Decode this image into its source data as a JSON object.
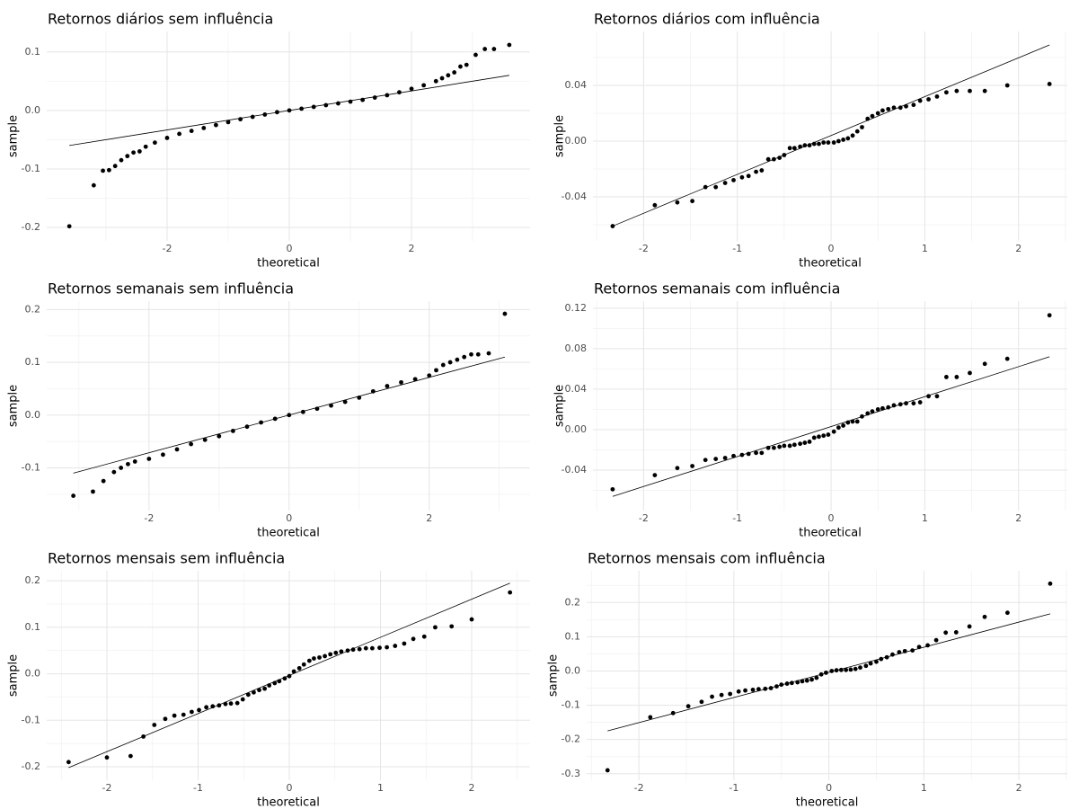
{
  "chart_data": [
    {
      "type": "scatter",
      "title": "Retornos diários sem influência",
      "xlabel": "theoretical",
      "ylabel": "sample",
      "color": "#000000",
      "grid": true,
      "xlim": [
        -3.97,
        3.94
      ],
      "ylim": [
        -0.223,
        0.135
      ],
      "xticks": [
        -2,
        0,
        2
      ],
      "minor_xticks": [
        -3,
        -1,
        1,
        3
      ],
      "yticks": [
        -0.2,
        -0.1,
        {
          "value": 0,
          "label": "0.0"
        },
        0.1
      ],
      "minor_yticks": [
        -0.15,
        -0.05,
        0.05
      ],
      "line": {
        "x": [
          -3.6,
          3.6
        ],
        "y": [
          -0.06,
          0.06
        ]
      },
      "x": [
        -3.6,
        -3.2,
        -3.05,
        -2.95,
        -2.85,
        -2.75,
        -2.65,
        -2.55,
        -2.45,
        -2.35,
        -2.2,
        -2.0,
        -1.8,
        -1.6,
        -1.4,
        -1.2,
        -1.0,
        -0.8,
        -0.6,
        -0.4,
        -0.2,
        0,
        0.2,
        0.4,
        0.6,
        0.8,
        1.0,
        1.2,
        1.4,
        1.6,
        1.8,
        2.0,
        2.2,
        2.4,
        2.5,
        2.6,
        2.7,
        2.8,
        2.9,
        3.05,
        3.2,
        3.35,
        3.6
      ],
      "y": [
        -0.198,
        -0.128,
        -0.103,
        -0.102,
        -0.095,
        -0.085,
        -0.078,
        -0.072,
        -0.07,
        -0.062,
        -0.055,
        -0.047,
        -0.04,
        -0.035,
        -0.03,
        -0.025,
        -0.02,
        -0.015,
        -0.011,
        -0.007,
        -0.003,
        0,
        0.003,
        0.006,
        0.009,
        0.012,
        0.015,
        0.018,
        0.022,
        0.026,
        0.031,
        0.037,
        0.043,
        0.05,
        0.055,
        0.06,
        0.065,
        0.075,
        0.078,
        0.095,
        0.105,
        0.105,
        0.112
      ]
    },
    {
      "type": "scatter",
      "title": "Retornos diários com influência",
      "xlabel": "theoretical",
      "ylabel": "sample",
      "color": "#000000",
      "grid": true,
      "xlim": [
        -2.54,
        2.52
      ],
      "ylim": [
        -0.0716,
        0.0787
      ],
      "xticks": [
        -2,
        -1,
        0,
        1,
        2
      ],
      "minor_xticks": [
        -2.5,
        -1.5,
        -0.5,
        0.5,
        1.5,
        2.5
      ],
      "yticks": [
        -0.04,
        {
          "value": 0,
          "label": "0.00"
        },
        0.04
      ],
      "minor_yticks": [
        -0.06,
        -0.02,
        0.02,
        0.06
      ],
      "line": {
        "x": [
          -2.33,
          2.33
        ],
        "y": [
          -0.061,
          0.069
        ]
      },
      "x": [
        -2.33,
        -1.88,
        -1.64,
        -1.48,
        -1.34,
        -1.23,
        -1.13,
        -1.04,
        -0.95,
        -0.88,
        -0.8,
        -0.74,
        -0.67,
        -0.61,
        -0.55,
        -0.5,
        -0.44,
        -0.39,
        -0.33,
        -0.28,
        -0.23,
        -0.18,
        -0.13,
        -0.08,
        -0.03,
        0.03,
        0.08,
        0.13,
        0.18,
        0.23,
        0.28,
        0.33,
        0.39,
        0.44,
        0.5,
        0.55,
        0.61,
        0.67,
        0.74,
        0.8,
        0.88,
        0.95,
        1.04,
        1.13,
        1.23,
        1.34,
        1.48,
        1.64,
        1.88,
        2.33
      ],
      "y": [
        -0.061,
        -0.046,
        -0.044,
        -0.043,
        -0.033,
        -0.033,
        -0.03,
        -0.028,
        -0.026,
        -0.025,
        -0.022,
        -0.021,
        -0.013,
        -0.013,
        -0.012,
        -0.01,
        -0.005,
        -0.005,
        -0.004,
        -0.003,
        -0.003,
        -0.002,
        -0.002,
        -0.001,
        -0.001,
        -0.001,
        0,
        0.001,
        0.002,
        0.004,
        0.007,
        0.01,
        0.016,
        0.018,
        0.02,
        0.022,
        0.023,
        0.024,
        0.024,
        0.025,
        0.026,
        0.029,
        0.03,
        0.032,
        0.035,
        0.036,
        0.036,
        0.036,
        0.04,
        0.041
      ]
    },
    {
      "type": "scatter",
      "title": "Retornos semanais sem influência",
      "xlabel": "theoretical",
      "ylabel": "sample",
      "color": "#000000",
      "grid": true,
      "xlim": [
        -3.46,
        3.44
      ],
      "ylim": [
        -0.181,
        0.216
      ],
      "xticks": [
        -2,
        0,
        2
      ],
      "minor_xticks": [
        -3,
        -1,
        1,
        3
      ],
      "yticks": [
        -0.1,
        {
          "value": 0,
          "label": "0.0"
        },
        0.1,
        0.2
      ],
      "minor_yticks": [
        -0.15,
        -0.05,
        0.05,
        0.15
      ],
      "line": {
        "x": [
          -3.08,
          3.08
        ],
        "y": [
          -0.11,
          0.11
        ]
      },
      "x": [
        -3.08,
        -2.8,
        -2.65,
        -2.5,
        -2.4,
        -2.3,
        -2.2,
        -2.0,
        -1.8,
        -1.6,
        -1.4,
        -1.2,
        -1.0,
        -0.8,
        -0.6,
        -0.4,
        -0.2,
        0,
        0.2,
        0.4,
        0.6,
        0.8,
        1.0,
        1.2,
        1.4,
        1.6,
        1.8,
        2.0,
        2.1,
        2.2,
        2.3,
        2.4,
        2.5,
        2.6,
        2.7,
        2.85,
        3.08
      ],
      "y": [
        -0.153,
        -0.145,
        -0.125,
        -0.108,
        -0.1,
        -0.093,
        -0.088,
        -0.083,
        -0.075,
        -0.065,
        -0.055,
        -0.047,
        -0.04,
        -0.03,
        -0.022,
        -0.014,
        -0.007,
        0,
        0.006,
        0.012,
        0.018,
        0.025,
        0.033,
        0.045,
        0.055,
        0.062,
        0.068,
        0.075,
        0.085,
        0.095,
        0.1,
        0.105,
        0.11,
        0.115,
        0.115,
        0.117,
        0.192
      ]
    },
    {
      "type": "scatter",
      "title": "Retornos semanais com influência",
      "xlabel": "theoretical",
      "ylabel": "sample",
      "color": "#000000",
      "grid": true,
      "xlim": [
        -2.54,
        2.52
      ],
      "ylim": [
        -0.08,
        0.127
      ],
      "xticks": [
        -2,
        -1,
        0,
        1,
        2
      ],
      "minor_xticks": [
        -2.5,
        -1.5,
        -0.5,
        0.5,
        1.5,
        2.5
      ],
      "yticks": [
        -0.04,
        {
          "value": 0,
          "label": "0.00"
        },
        0.04,
        0.08,
        0.12
      ],
      "minor_yticks": [
        -0.06,
        -0.02,
        0.02,
        0.06,
        0.1
      ],
      "line": {
        "x": [
          -2.33,
          2.33
        ],
        "y": [
          -0.066,
          0.072
        ]
      },
      "x": [
        -2.33,
        -1.88,
        -1.64,
        -1.48,
        -1.34,
        -1.23,
        -1.13,
        -1.04,
        -0.95,
        -0.88,
        -0.8,
        -0.74,
        -0.67,
        -0.61,
        -0.55,
        -0.5,
        -0.44,
        -0.39,
        -0.33,
        -0.28,
        -0.23,
        -0.18,
        -0.13,
        -0.08,
        -0.03,
        0.03,
        0.08,
        0.13,
        0.18,
        0.23,
        0.28,
        0.33,
        0.39,
        0.44,
        0.5,
        0.55,
        0.61,
        0.67,
        0.74,
        0.8,
        0.88,
        0.95,
        1.04,
        1.13,
        1.23,
        1.34,
        1.48,
        1.64,
        1.88,
        2.33
      ],
      "y": [
        -0.059,
        -0.045,
        -0.038,
        -0.036,
        -0.03,
        -0.029,
        -0.028,
        -0.026,
        -0.025,
        -0.024,
        -0.023,
        -0.023,
        -0.018,
        -0.018,
        -0.017,
        -0.016,
        -0.016,
        -0.015,
        -0.014,
        -0.013,
        -0.012,
        -0.008,
        -0.007,
        -0.006,
        -0.005,
        -0.002,
        0.002,
        0.004,
        0.007,
        0.008,
        0.008,
        0.013,
        0.016,
        0.018,
        0.02,
        0.021,
        0.022,
        0.024,
        0.025,
        0.026,
        0.026,
        0.027,
        0.033,
        0.033,
        0.052,
        0.052,
        0.056,
        0.065,
        0.07,
        0.113
      ]
    },
    {
      "type": "scatter",
      "title": "Retornos mensais sem influência",
      "xlabel": "theoretical",
      "ylabel": "sample",
      "color": "#000000",
      "grid": true,
      "xlim": [
        -2.66,
        2.64
      ],
      "ylim": [
        -0.229,
        0.2216
      ],
      "xticks": [
        -2,
        -1,
        0,
        1,
        2
      ],
      "minor_xticks": [
        -2.5,
        -1.5,
        -0.5,
        0.5,
        1.5,
        2.5
      ],
      "yticks": [
        -0.2,
        -0.1,
        {
          "value": 0,
          "label": "0.0"
        },
        0.1,
        0.2
      ],
      "minor_yticks": [
        -0.15,
        -0.05,
        0.05,
        0.15
      ],
      "line": {
        "x": [
          -2.42,
          2.42
        ],
        "y": [
          -0.202,
          0.195
        ]
      },
      "x": [
        -2.42,
        -2.0,
        -1.74,
        -1.6,
        -1.48,
        -1.36,
        -1.26,
        -1.16,
        -1.07,
        -0.99,
        -0.91,
        -0.84,
        -0.77,
        -0.7,
        -0.64,
        -0.57,
        -0.51,
        -0.45,
        -0.39,
        -0.33,
        -0.27,
        -0.22,
        -0.16,
        -0.11,
        -0.05,
        0,
        0.05,
        0.11,
        0.16,
        0.22,
        0.27,
        0.33,
        0.39,
        0.45,
        0.51,
        0.57,
        0.64,
        0.7,
        0.77,
        0.84,
        0.91,
        0.99,
        1.07,
        1.16,
        1.26,
        1.36,
        1.48,
        1.6,
        1.78,
        2.0,
        2.42
      ],
      "y": [
        -0.19,
        -0.18,
        -0.177,
        -0.135,
        -0.11,
        -0.097,
        -0.09,
        -0.088,
        -0.082,
        -0.078,
        -0.072,
        -0.07,
        -0.068,
        -0.065,
        -0.064,
        -0.063,
        -0.055,
        -0.045,
        -0.04,
        -0.035,
        -0.032,
        -0.025,
        -0.02,
        -0.016,
        -0.01,
        -0.005,
        0.005,
        0.012,
        0.02,
        0.028,
        0.033,
        0.035,
        0.038,
        0.042,
        0.045,
        0.048,
        0.05,
        0.052,
        0.053,
        0.055,
        0.055,
        0.056,
        0.057,
        0.06,
        0.065,
        0.075,
        0.08,
        0.1,
        0.102,
        0.117,
        0.175
      ]
    },
    {
      "type": "scatter",
      "title": "Retornos mensais com influência",
      "xlabel": "theoretical",
      "ylabel": "sample",
      "color": "#000000",
      "grid": true,
      "xlim": [
        -2.55,
        2.51
      ],
      "ylim": [
        -0.319,
        0.2926
      ],
      "xticks": [
        -2,
        -1,
        0,
        1,
        2
      ],
      "minor_xticks": [
        -2.5,
        -1.5,
        -0.5,
        0.5,
        1.5,
        2.5
      ],
      "yticks": [
        -0.3,
        -0.2,
        -0.1,
        {
          "value": 0,
          "label": "0.0"
        },
        0.1,
        0.2
      ],
      "minor_yticks": [
        -0.25,
        -0.15,
        -0.05,
        0.05,
        0.15,
        0.25
      ],
      "line": {
        "x": [
          -2.33,
          2.33
        ],
        "y": [
          -0.175,
          0.167
        ]
      },
      "x": [
        -2.33,
        -1.88,
        -1.64,
        -1.48,
        -1.34,
        -1.23,
        -1.13,
        -1.04,
        -0.95,
        -0.88,
        -0.8,
        -0.74,
        -0.67,
        -0.61,
        -0.55,
        -0.5,
        -0.44,
        -0.39,
        -0.33,
        -0.28,
        -0.23,
        -0.18,
        -0.13,
        -0.08,
        -0.03,
        0.03,
        0.08,
        0.13,
        0.18,
        0.23,
        0.28,
        0.33,
        0.39,
        0.44,
        0.5,
        0.55,
        0.61,
        0.67,
        0.74,
        0.8,
        0.88,
        0.95,
        1.04,
        1.13,
        1.23,
        1.34,
        1.48,
        1.64,
        1.88,
        2.33
      ],
      "y": [
        -0.29,
        -0.135,
        -0.123,
        -0.103,
        -0.09,
        -0.075,
        -0.07,
        -0.067,
        -0.06,
        -0.057,
        -0.055,
        -0.053,
        -0.052,
        -0.05,
        -0.045,
        -0.04,
        -0.037,
        -0.035,
        -0.033,
        -0.03,
        -0.028,
        -0.025,
        -0.02,
        -0.01,
        -0.005,
        0,
        0.002,
        0.003,
        0.003,
        0.004,
        0.006,
        0.01,
        0.015,
        0.022,
        0.027,
        0.035,
        0.04,
        0.048,
        0.055,
        0.058,
        0.06,
        0.07,
        0.075,
        0.09,
        0.112,
        0.113,
        0.13,
        0.158,
        0.17,
        0.255
      ]
    }
  ]
}
